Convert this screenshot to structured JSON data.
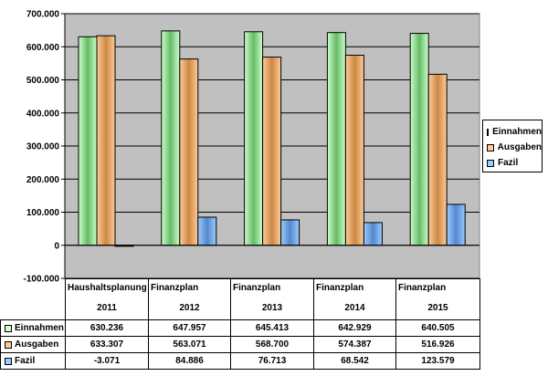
{
  "chart_data": {
    "type": "bar",
    "categories": [
      {
        "line1": "Haushaltsplanung",
        "line2": "2011"
      },
      {
        "line1": "Finanzplan",
        "line2": "2012"
      },
      {
        "line1": "Finanzplan",
        "line2": "2013"
      },
      {
        "line1": "Finanzplan",
        "line2": "2014"
      },
      {
        "line1": "Finanzplan",
        "line2": "2015"
      }
    ],
    "series": [
      {
        "name": "Einnahmen",
        "values": [
          630236,
          647957,
          645413,
          642929,
          640505
        ],
        "labels": [
          "630.236",
          "647.957",
          "645.413",
          "642.929",
          "640.505"
        ],
        "color": "#ccffcc",
        "shade": "#66bb66"
      },
      {
        "name": "Ausgaben",
        "values": [
          633307,
          563071,
          568700,
          574387,
          516926
        ],
        "labels": [
          "633.307",
          "563.071",
          "568.700",
          "574.387",
          "516.926"
        ],
        "color": "#ffcc99",
        "shade": "#cc8844"
      },
      {
        "name": "Fazil",
        "values": [
          -3071,
          84886,
          76713,
          68542,
          123579
        ],
        "labels": [
          "-3.071",
          "84.886",
          "76.713",
          "68.542",
          "123.579"
        ],
        "color": "#99ccff",
        "shade": "#5588cc"
      }
    ],
    "yticks": [
      "700.000",
      "600.000",
      "500.000",
      "400.000",
      "300.000",
      "200.000",
      "100.000",
      "0",
      "-100.000"
    ],
    "ylim": [
      -100000,
      700000
    ],
    "grid": true,
    "legend": "right",
    "plot_background": "#c0c0c0",
    "title": "",
    "xlabel": "",
    "ylabel": ""
  }
}
